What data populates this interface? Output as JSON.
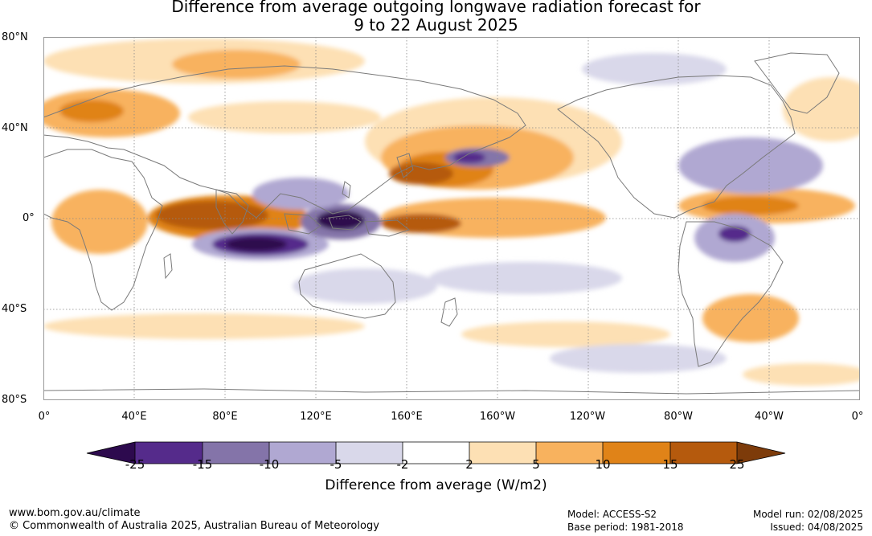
{
  "title": "Difference from average outgoing longwave radiation forecast for\n9 to 22 August 2025",
  "map": {
    "latitude_labels": [
      "80°N",
      "40°N",
      "0°",
      "40°S",
      "80°S"
    ],
    "longitude_labels": [
      "0°",
      "40°E",
      "80°E",
      "120°E",
      "160°E",
      "160°W",
      "120°W",
      "80°W",
      "40°W",
      "0°"
    ],
    "colors": {
      "neg_25": "#2d0a4e",
      "neg_15": "#552b8b",
      "neg_10": "#8474a9",
      "neg_5": "#b0a8d2",
      "neg_2": "#d9d8ea",
      "neutral": "#ffffff",
      "pos_2": "#fde0b4",
      "pos_5": "#f8b25e",
      "pos_10": "#e08318",
      "pos_15": "#b55a0d",
      "pos_25": "#7d3b0a"
    }
  },
  "colorbar": {
    "ticks": [
      "-25",
      "-15",
      "-10",
      "-5",
      "-2",
      "2",
      "5",
      "10",
      "15",
      "25"
    ],
    "label": "Difference from average (W/m2)"
  },
  "footer": {
    "site": "www.bom.gov.au/climate",
    "copyright": "© Commonwealth of Australia 2025, Australian Bureau of Meteorology",
    "model": "Model: ACCESS-S2",
    "base_period": "Base period: 1981-2018",
    "model_run": "Model run: 02/08/2025",
    "issued": "Issued: 04/08/2025"
  }
}
